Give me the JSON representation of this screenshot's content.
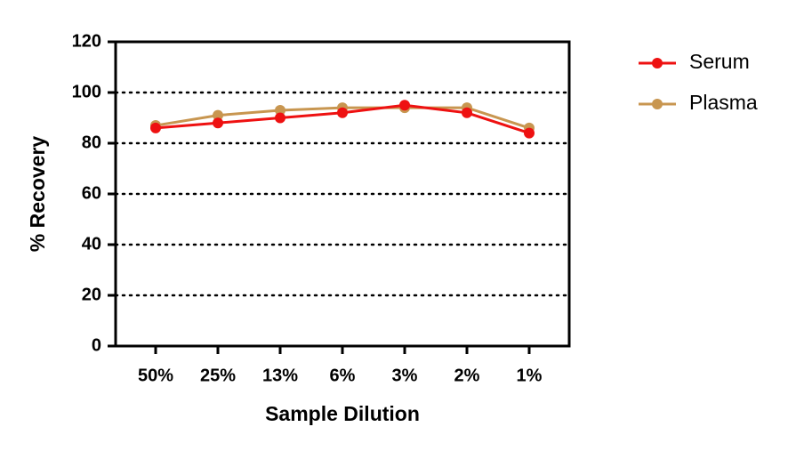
{
  "chart_data": {
    "type": "line",
    "x_label": "Sample Dilution",
    "y_label": "% Recovery",
    "categories": [
      "50%",
      "25%",
      "13%",
      "6%",
      "3%",
      "2%",
      "1%"
    ],
    "series": [
      {
        "name": "Serum",
        "color": "#ee1111",
        "values": [
          86,
          88,
          90,
          92,
          95,
          92,
          84
        ]
      },
      {
        "name": "Plasma",
        "color": "#c89650",
        "values": [
          87,
          91,
          93,
          94,
          94,
          94,
          86
        ]
      }
    ],
    "ylim": [
      0,
      120
    ],
    "yticks": [
      0,
      20,
      40,
      60,
      80,
      100,
      120
    ],
    "grid": true,
    "legend_position": "right"
  }
}
